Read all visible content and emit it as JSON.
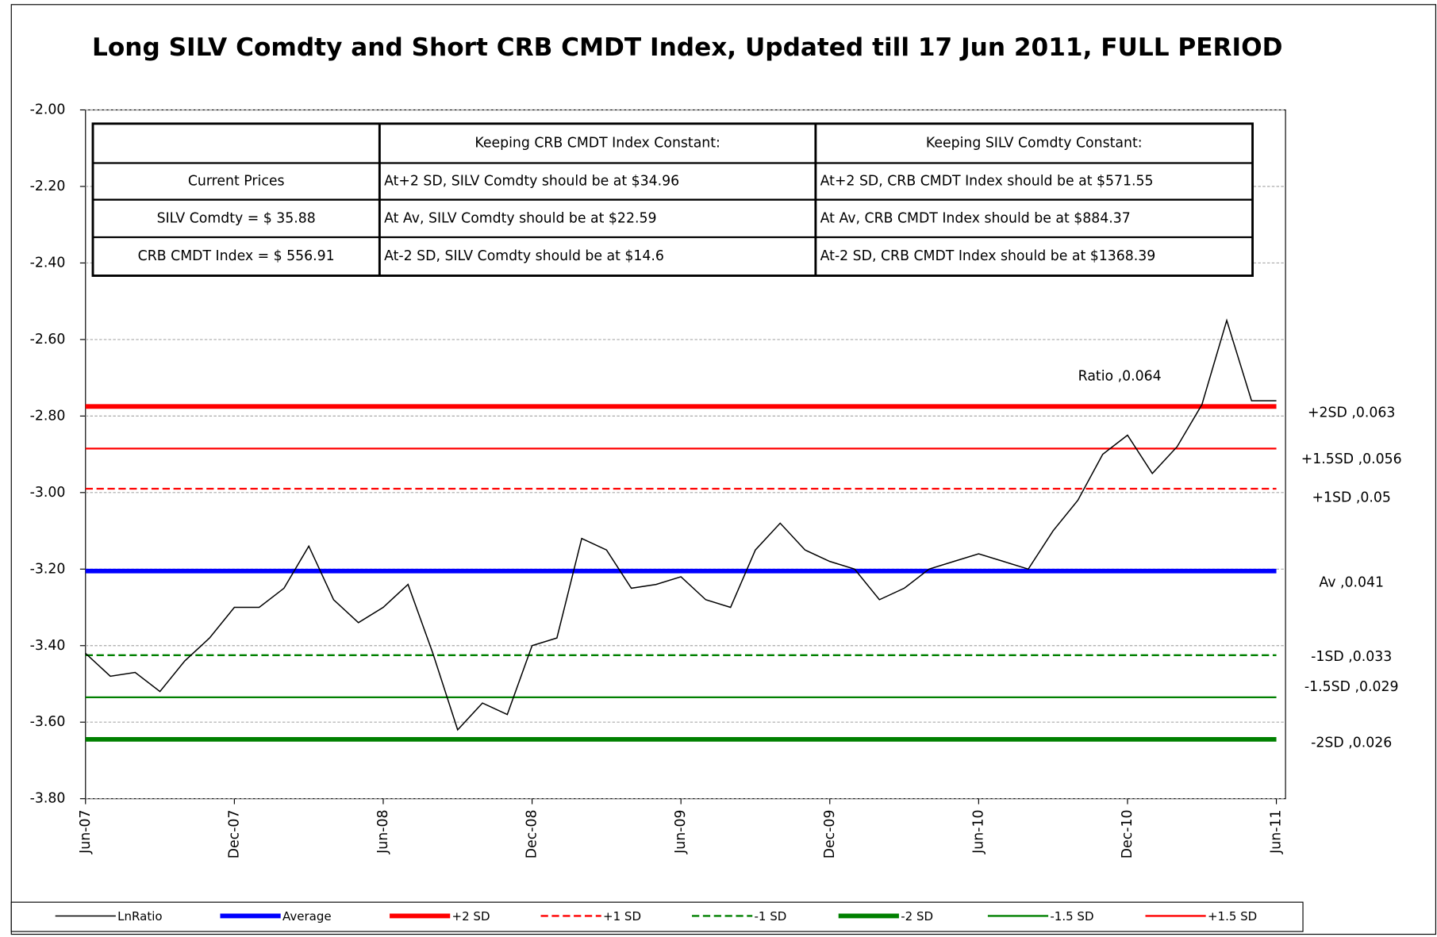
{
  "chart_data": {
    "type": "line",
    "title": "Long SILV Comdty and Short CRB CMDT Index, Updated till 17 Jun 2011, FULL PERIOD",
    "categories": [
      "Jun-07",
      null,
      null,
      null,
      null,
      null,
      "Dec-07",
      null,
      null,
      null,
      null,
      null,
      "Jun-08",
      null,
      null,
      null,
      null,
      null,
      "Dec-08",
      null,
      null,
      null,
      null,
      null,
      "Jun-09",
      null,
      null,
      null,
      null,
      null,
      "Dec-09",
      null,
      null,
      null,
      null,
      null,
      "Jun-10",
      null,
      null,
      null,
      null,
      null,
      "Dec-10",
      null,
      null,
      null,
      null,
      null,
      "Jun-11"
    ],
    "series": [
      {
        "name": "LnRatio",
        "color": "#000000",
        "values": [
          -3.42,
          -3.48,
          -3.47,
          -3.52,
          -3.44,
          -3.38,
          -3.3,
          -3.3,
          -3.25,
          -3.14,
          -3.28,
          -3.34,
          -3.3,
          -3.24,
          -3.42,
          -3.62,
          -3.55,
          -3.58,
          -3.4,
          -3.38,
          -3.12,
          -3.15,
          -3.25,
          -3.24,
          -3.22,
          -3.28,
          -3.3,
          -3.15,
          -3.08,
          -3.15,
          -3.18,
          -3.2,
          -3.28,
          -3.25,
          -3.2,
          -3.18,
          -3.16,
          -3.18,
          -3.2,
          -3.1,
          -3.02,
          -2.9,
          -2.85,
          -2.95,
          -2.88,
          -2.77,
          -2.55,
          -2.76,
          -2.76
        ]
      }
    ],
    "reference_lines": [
      {
        "name": "Average",
        "value": -3.205,
        "color": "#0000ff",
        "label": "Av ,0.041"
      },
      {
        "name": "+2 SD",
        "value": -2.775,
        "color": "#ff0000",
        "label": "+2SD ,0.063"
      },
      {
        "name": "+1 SD",
        "value": -2.99,
        "color": "#ff0000",
        "label": "+1SD ,0.05"
      },
      {
        "name": "-1 SD",
        "value": -3.425,
        "color": "#008000",
        "label": "-1SD ,0.033"
      },
      {
        "name": "-2 SD",
        "value": -3.645,
        "color": "#008000",
        "label": "-2SD ,0.026"
      },
      {
        "name": "-1.5 SD",
        "value": -3.535,
        "color": "#008000",
        "label": "-1.5SD ,0.029"
      },
      {
        "name": "+1.5 SD",
        "value": -2.885,
        "color": "#ff0000",
        "label": "+1.5SD ,0.056"
      }
    ],
    "annotation": "Ratio ,0.064",
    "ylim": [
      -3.8,
      -2.0
    ],
    "yticks": [
      {
        "value": -3.8,
        "label": "-3.80"
      },
      {
        "value": -3.6,
        "label": "-3.60"
      },
      {
        "value": -3.4,
        "label": "-3.40"
      },
      {
        "value": -3.2,
        "label": "-3.20"
      },
      {
        "value": -3.0,
        "label": "-3.00"
      },
      {
        "value": -2.8,
        "label": "-2.80"
      },
      {
        "value": -2.6,
        "label": "-2.60"
      },
      {
        "value": -2.4,
        "label": "-2.40"
      },
      {
        "value": -2.2,
        "label": "-2.20"
      },
      {
        "value": -2.0,
        "label": "-2.00"
      }
    ],
    "grid": true
  },
  "table": {
    "header": [
      "Keeping CRB CMDT Index Constant:",
      "Keeping SILV Comdty Constant:"
    ],
    "rows": [
      [
        "Current Prices",
        "At+2 SD, SILV Comdty should be at $34.96",
        "At+2 SD, CRB CMDT Index should be at $571.55"
      ],
      [
        "SILV Comdty =  $ 35.88",
        "At Av, SILV Comdty should be at $22.59",
        "At Av, CRB CMDT Index should be at $884.37"
      ],
      [
        "CRB CMDT Index =  $ 556.91",
        "At-2 SD, SILV Comdty should be at $14.6",
        "At-2 SD, CRB CMDT Index should be at $1368.39"
      ]
    ]
  }
}
